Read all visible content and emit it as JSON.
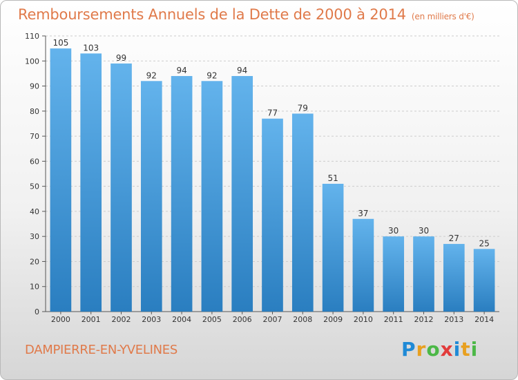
{
  "header": {
    "title": "Remboursements Annuels de la Dette de 2000 à 2014",
    "subtitle": "(en milliers d'€)"
  },
  "footer": {
    "commune": "DAMPIERRE-EN-YVELINES",
    "brand_letters": [
      "P",
      "r",
      "o",
      "x",
      "i",
      "t",
      "i"
    ],
    "brand_colors": [
      "#1f8ad6",
      "#e8a020",
      "#4cb847",
      "#e23b3b",
      "#1f8ad6",
      "#e8a020",
      "#4cb847"
    ]
  },
  "colors": {
    "bar_light": "#63b3ec",
    "bar_dark": "#2a7ec0",
    "accent": "#e07a4a",
    "grid": "#cccccc"
  },
  "chart_data": {
    "type": "bar",
    "categories": [
      "2000",
      "2001",
      "2002",
      "2003",
      "2004",
      "2005",
      "2006",
      "2007",
      "2008",
      "2009",
      "2010",
      "2011",
      "2012",
      "2013",
      "2014"
    ],
    "values": [
      105,
      103,
      99,
      92,
      94,
      92,
      94,
      77,
      79,
      51,
      37,
      30,
      30,
      27,
      25
    ],
    "title": "Remboursements Annuels de la Dette de 2000 à 2014",
    "subtitle": "(en milliers d'€)",
    "xlabel": "",
    "ylabel": "",
    "ylim": [
      0,
      110
    ],
    "yticks": [
      0,
      10,
      20,
      30,
      40,
      50,
      60,
      70,
      80,
      90,
      100,
      110
    ],
    "grid": true,
    "legend": "none"
  }
}
